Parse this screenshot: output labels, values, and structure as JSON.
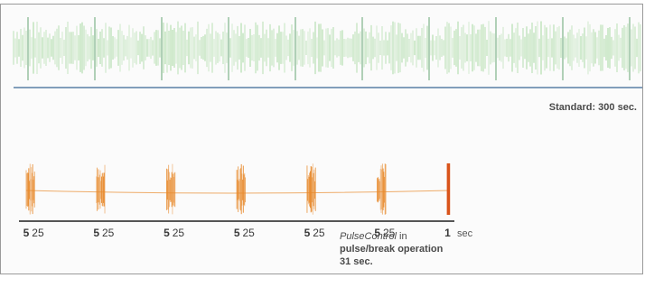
{
  "chart_data": {
    "type": "line",
    "title": "",
    "panels": [
      {
        "name": "Standard",
        "label": "Standard: 300 sec.",
        "color": "#8fcf87",
        "description_mode": "continuous",
        "duration_sec": 300
      },
      {
        "name": "PulseControl",
        "color": "#e88a2c",
        "description_mode": "pulse/break",
        "duration_sec": 31,
        "segments": [
          5,
          25,
          5,
          25,
          5,
          25,
          5,
          25,
          5,
          25,
          5,
          25,
          1
        ],
        "pulse_sec": 5,
        "break_sec": 25,
        "final_sec": 1
      }
    ],
    "x_tick_labels": [
      "5",
      "25",
      "5",
      "25",
      "5",
      "25",
      "5",
      "25",
      "5",
      "25",
      "5",
      "25",
      "1"
    ],
    "x_unit": "sec",
    "caption": {
      "name": "PulseControl",
      "line1_suffix": " in",
      "line2": "pulse/break operation",
      "line3": "31 sec."
    },
    "colors": {
      "standard": "#8fcf87",
      "standard_baseline": "#5a7fa6",
      "pulse": "#e88a2c",
      "pulse_final": "#d9541b",
      "axis": "#555555"
    }
  }
}
